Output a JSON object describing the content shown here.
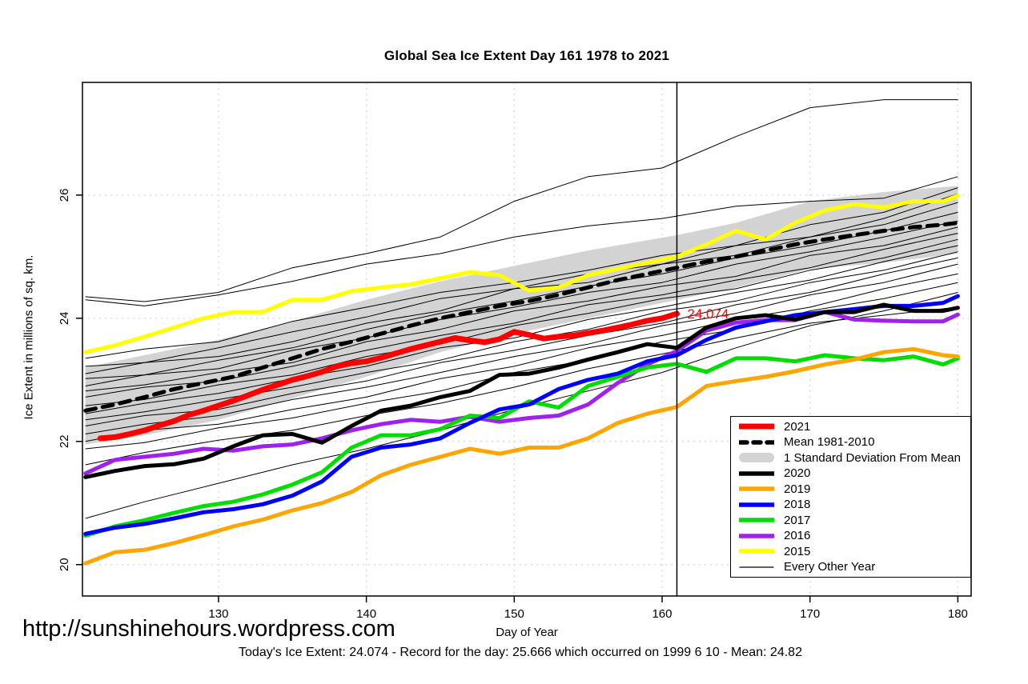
{
  "title": "Global Sea Ice Extent Day 161 1978 to 2021",
  "footer": {
    "url": "http://sunshinehours.wordpress.com",
    "subtitle": "Today's Ice Extent: 24.074  - Record for the day: 25.666 which occurred on 1999 6 10  - Mean: 24.82"
  },
  "legend": {
    "entries": [
      {
        "label": "2021",
        "kind": "thick-line",
        "color": "#FF0000"
      },
      {
        "label": "Mean 1981-2010",
        "kind": "dashed-line",
        "color": "#000000"
      },
      {
        "label": "1 Standard Deviation From Mean",
        "kind": "band",
        "color": "#D3D3D3"
      },
      {
        "label": "2020",
        "kind": "line",
        "color": "#000000"
      },
      {
        "label": "2019",
        "kind": "line",
        "color": "#FFA500"
      },
      {
        "label": "2018",
        "kind": "line",
        "color": "#0000FF"
      },
      {
        "label": "2017",
        "kind": "line",
        "color": "#00DD00"
      },
      {
        "label": "2016",
        "kind": "line",
        "color": "#A020F0"
      },
      {
        "label": "2015",
        "kind": "line",
        "color": "#FFFF00"
      },
      {
        "label": "Every Other Year",
        "kind": "thin-line",
        "color": "#000000"
      }
    ]
  },
  "chart_data": {
    "type": "line",
    "title": "Global Sea Ice Extent Day 161 1978 to 2021",
    "xlabel": "Day of Year",
    "ylabel": "Ice Extent in millions of sq. km.",
    "xlim": [
      120.8,
      180.9
    ],
    "ylim": [
      19.49,
      27.83
    ],
    "xticks": [
      130,
      140,
      150,
      160,
      170,
      180
    ],
    "yticks": [
      20,
      22,
      24,
      26
    ],
    "grid": true,
    "grid_color": "#d4d4d4",
    "legend_position": "bottom-right",
    "vline_x": 161,
    "annotation": {
      "text": "24.074",
      "x": 161.7,
      "y": 24.074,
      "color": "#FF0000"
    },
    "band": {
      "label": "1 Standard Deviation From Mean",
      "color": "#D3D3D3",
      "days": [
        121,
        125,
        130,
        135,
        140,
        145,
        150,
        155,
        161,
        165,
        170,
        175,
        180
      ],
      "upper": [
        23.2,
        23.4,
        23.65,
        23.95,
        24.3,
        24.6,
        24.85,
        25.1,
        25.35,
        25.55,
        25.9,
        26.05,
        26.15
      ],
      "lower": [
        21.95,
        22.1,
        22.35,
        22.7,
        23.05,
        23.45,
        23.75,
        24.0,
        24.3,
        24.5,
        24.8,
        24.9,
        25.05
      ]
    },
    "series": [
      {
        "name": "Mean 1981-2010",
        "color": "#000000",
        "width": 5,
        "dash": "13 9",
        "days": [
          121,
          123,
          125,
          127,
          129,
          131,
          133,
          135,
          137,
          139,
          141,
          143,
          145,
          147,
          149,
          151,
          153,
          155,
          157,
          159,
          161,
          163,
          165,
          167,
          169,
          171,
          173,
          175,
          177,
          179,
          180
        ],
        "values": [
          22.5,
          22.6,
          22.72,
          22.85,
          22.95,
          23.05,
          23.2,
          23.35,
          23.5,
          23.62,
          23.75,
          23.88,
          24.0,
          24.1,
          24.2,
          24.28,
          24.38,
          24.5,
          24.62,
          24.72,
          24.82,
          24.92,
          25.0,
          25.1,
          25.2,
          25.28,
          25.35,
          25.42,
          25.48,
          25.52,
          25.55
        ]
      },
      {
        "name": "2015",
        "color": "#FFFF00",
        "width": 5,
        "days": [
          121,
          123,
          125,
          127,
          129,
          131,
          133,
          135,
          137,
          139,
          141,
          143,
          145,
          147,
          149,
          151,
          153,
          155,
          157,
          159,
          161,
          163,
          165,
          167,
          169,
          171,
          173,
          175,
          177,
          179,
          180
        ],
        "values": [
          23.45,
          23.56,
          23.7,
          23.85,
          24.0,
          24.1,
          24.1,
          24.3,
          24.3,
          24.44,
          24.5,
          24.55,
          24.65,
          24.75,
          24.7,
          24.45,
          24.5,
          24.7,
          24.8,
          24.9,
          25.0,
          25.2,
          25.42,
          25.28,
          25.55,
          25.75,
          25.85,
          25.8,
          25.9,
          25.9,
          25.99
        ]
      },
      {
        "name": "2016",
        "color": "#A020F0",
        "width": 5,
        "days": [
          121,
          123,
          125,
          127,
          129,
          131,
          133,
          135,
          137,
          139,
          141,
          143,
          145,
          147,
          149,
          151,
          153,
          155,
          157,
          159,
          161,
          163,
          165,
          167,
          169,
          171,
          173,
          175,
          177,
          179,
          180
        ],
        "values": [
          21.48,
          21.7,
          21.75,
          21.8,
          21.88,
          21.85,
          21.92,
          21.95,
          22.05,
          22.18,
          22.28,
          22.35,
          22.32,
          22.4,
          22.32,
          22.38,
          22.42,
          22.6,
          22.95,
          23.25,
          23.47,
          23.8,
          23.93,
          23.97,
          23.97,
          24.1,
          23.98,
          23.96,
          23.95,
          23.95,
          24.06
        ]
      },
      {
        "name": "2017",
        "color": "#00DD00",
        "width": 5,
        "days": [
          121,
          123,
          125,
          127,
          129,
          131,
          133,
          135,
          137,
          139,
          141,
          143,
          145,
          147,
          149,
          151,
          153,
          155,
          157,
          159,
          161,
          163,
          165,
          167,
          169,
          171,
          173,
          175,
          177,
          179,
          180
        ],
        "values": [
          20.47,
          20.62,
          20.72,
          20.84,
          20.95,
          21.02,
          21.14,
          21.3,
          21.5,
          21.9,
          22.1,
          22.1,
          22.2,
          22.42,
          22.38,
          22.65,
          22.55,
          22.9,
          23.05,
          23.2,
          23.26,
          23.13,
          23.35,
          23.35,
          23.3,
          23.4,
          23.35,
          23.32,
          23.38,
          23.25,
          23.35
        ]
      },
      {
        "name": "2018",
        "color": "#0000FF",
        "width": 5,
        "days": [
          121,
          123,
          125,
          127,
          129,
          131,
          133,
          135,
          137,
          139,
          141,
          143,
          145,
          147,
          149,
          151,
          153,
          155,
          157,
          159,
          161,
          163,
          165,
          167,
          169,
          171,
          173,
          175,
          177,
          179,
          180
        ],
        "values": [
          20.5,
          20.6,
          20.66,
          20.75,
          20.85,
          20.9,
          20.98,
          21.12,
          21.35,
          21.75,
          21.9,
          21.95,
          22.05,
          22.3,
          22.52,
          22.6,
          22.85,
          23.0,
          23.1,
          23.3,
          23.4,
          23.65,
          23.85,
          23.95,
          24.05,
          24.1,
          24.15,
          24.2,
          24.2,
          24.25,
          24.36
        ]
      },
      {
        "name": "2019",
        "color": "#FFA500",
        "width": 5,
        "days": [
          121,
          123,
          125,
          127,
          129,
          131,
          133,
          135,
          137,
          139,
          141,
          143,
          145,
          147,
          149,
          151,
          153,
          155,
          157,
          159,
          161,
          163,
          165,
          167,
          169,
          171,
          173,
          175,
          177,
          179,
          180
        ],
        "values": [
          20.02,
          20.2,
          20.24,
          20.35,
          20.48,
          20.62,
          20.73,
          20.88,
          21.0,
          21.18,
          21.45,
          21.62,
          21.75,
          21.88,
          21.8,
          21.9,
          21.9,
          22.05,
          22.3,
          22.45,
          22.56,
          22.9,
          22.98,
          23.05,
          23.14,
          23.25,
          23.33,
          23.45,
          23.5,
          23.4,
          23.38
        ]
      },
      {
        "name": "2020",
        "color": "#000000",
        "width": 5,
        "days": [
          121,
          123,
          125,
          127,
          129,
          131,
          133,
          135,
          137,
          139,
          141,
          143,
          145,
          147,
          149,
          151,
          153,
          155,
          157,
          159,
          161,
          163,
          165,
          167,
          169,
          171,
          173,
          175,
          177,
          179,
          180
        ],
        "values": [
          21.42,
          21.52,
          21.6,
          21.63,
          21.72,
          21.92,
          22.1,
          22.12,
          21.98,
          22.25,
          22.5,
          22.58,
          22.72,
          22.82,
          23.08,
          23.1,
          23.2,
          23.33,
          23.45,
          23.58,
          23.52,
          23.85,
          24.0,
          24.05,
          23.98,
          24.1,
          24.1,
          24.22,
          24.12,
          24.12,
          24.17
        ]
      },
      {
        "name": "2021",
        "color": "#FF0000",
        "width": 7,
        "days": [
          122,
          123,
          124,
          125,
          126,
          127,
          128,
          129,
          130,
          131,
          132,
          133,
          134,
          135,
          136,
          137,
          138,
          139,
          140,
          141,
          142,
          143,
          144,
          145,
          146,
          147,
          148,
          149,
          150,
          151,
          152,
          153,
          154,
          155,
          156,
          157,
          158,
          159,
          160,
          161
        ],
        "values": [
          22.05,
          22.07,
          22.12,
          22.18,
          22.26,
          22.33,
          22.43,
          22.5,
          22.58,
          22.66,
          22.75,
          22.84,
          22.92,
          23.0,
          23.06,
          23.13,
          23.22,
          23.27,
          23.3,
          23.36,
          23.43,
          23.5,
          23.56,
          23.62,
          23.68,
          23.64,
          23.61,
          23.66,
          23.78,
          23.73,
          23.67,
          23.7,
          23.72,
          23.76,
          23.8,
          23.85,
          23.9,
          23.96,
          24.0,
          24.074
        ]
      }
    ],
    "every_other_year": {
      "label": "Every Other Year",
      "color": "#000000",
      "width": 1,
      "days": [
        121,
        125,
        130,
        135,
        140,
        145,
        150,
        155,
        160,
        165,
        170,
        175,
        180
      ],
      "lines": [
        [
          24.35,
          24.27,
          24.42,
          24.82,
          25.05,
          25.32,
          25.9,
          26.3,
          26.44,
          26.95,
          27.42,
          27.55,
          27.55
        ],
        [
          24.3,
          24.2,
          24.38,
          24.6,
          24.88,
          25.05,
          25.32,
          25.5,
          25.62,
          25.82,
          25.9,
          25.95,
          26.3
        ],
        [
          23.35,
          23.5,
          23.62,
          23.95,
          24.18,
          24.42,
          24.58,
          24.78,
          25.02,
          25.18,
          25.52,
          25.72,
          26.12
        ],
        [
          23.22,
          23.28,
          23.52,
          23.78,
          24.02,
          24.32,
          24.48,
          24.72,
          24.88,
          25.18,
          25.32,
          25.62,
          26.02
        ],
        [
          23.1,
          23.28,
          23.38,
          23.62,
          23.92,
          24.12,
          24.48,
          24.58,
          24.88,
          25.02,
          25.32,
          25.52,
          25.88
        ],
        [
          23.02,
          23.08,
          23.32,
          23.52,
          23.82,
          24.08,
          24.28,
          24.52,
          24.72,
          24.98,
          25.18,
          25.42,
          25.72
        ],
        [
          22.9,
          23.08,
          23.18,
          23.48,
          23.68,
          23.98,
          24.18,
          24.42,
          24.58,
          24.88,
          25.08,
          25.32,
          25.58
        ],
        [
          22.82,
          22.92,
          23.12,
          23.28,
          23.62,
          23.82,
          24.12,
          24.28,
          24.52,
          24.68,
          25.02,
          25.18,
          25.48
        ],
        [
          22.72,
          22.88,
          22.98,
          23.22,
          23.48,
          23.72,
          23.92,
          24.22,
          24.38,
          24.62,
          24.82,
          25.12,
          25.38
        ],
        [
          22.58,
          22.68,
          22.92,
          23.08,
          23.38,
          23.58,
          23.88,
          24.08,
          24.32,
          24.48,
          24.78,
          24.98,
          25.28
        ],
        [
          22.45,
          22.62,
          22.78,
          23.02,
          23.22,
          23.52,
          23.68,
          23.98,
          24.18,
          24.42,
          24.62,
          24.92,
          25.18
        ],
        [
          22.35,
          22.48,
          22.68,
          22.88,
          23.12,
          23.32,
          23.62,
          23.82,
          24.12,
          24.28,
          24.58,
          24.78,
          25.08
        ],
        [
          22.25,
          22.42,
          22.52,
          22.78,
          22.98,
          23.28,
          23.48,
          23.72,
          23.92,
          24.22,
          24.42,
          24.72,
          24.98
        ],
        [
          22.12,
          22.28,
          22.42,
          22.68,
          22.88,
          23.12,
          23.38,
          23.58,
          23.88,
          24.08,
          24.38,
          24.58,
          24.88
        ],
        [
          22.0,
          22.18,
          22.28,
          22.52,
          22.72,
          23.02,
          23.22,
          23.52,
          23.72,
          23.98,
          24.18,
          24.48,
          24.72
        ],
        [
          21.88,
          21.98,
          22.22,
          22.38,
          22.62,
          22.82,
          23.12,
          23.32,
          23.62,
          23.82,
          24.12,
          24.32,
          24.58
        ],
        [
          21.62,
          21.82,
          22.02,
          22.18,
          22.42,
          22.62,
          22.88,
          23.18,
          23.42,
          23.68,
          23.92,
          24.05,
          24.18
        ],
        [
          20.75,
          21.02,
          21.32,
          21.62,
          21.88,
          22.18,
          22.52,
          22.82,
          23.12,
          23.52,
          23.88,
          24.12,
          24.42
        ]
      ]
    }
  }
}
